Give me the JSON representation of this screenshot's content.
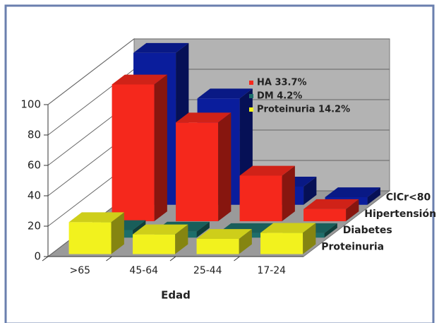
{
  "chart_data": {
    "type": "bar3d",
    "categories": [
      ">65",
      "45-64",
      "25-44",
      "17-24"
    ],
    "series": [
      {
        "name": "Proteinuria",
        "color": "#f2f21e",
        "values": [
          21,
          13,
          10,
          14
        ]
      },
      {
        "name": "Diabetes",
        "color": "#1d6e6a",
        "values": [
          5,
          4,
          3,
          3
        ]
      },
      {
        "name": "Hipertensión",
        "color": "#f5281c",
        "values": [
          90,
          65,
          30,
          8
        ]
      },
      {
        "name": "ClCr<80",
        "color": "#0a1d9c",
        "values": [
          100,
          70,
          12,
          5
        ]
      }
    ],
    "xlabel": "Edad",
    "ylim": [
      0,
      100
    ],
    "yticks": [
      0,
      20,
      40,
      60,
      80,
      100
    ],
    "grid": true,
    "notes": [
      {
        "label": "HA 33.7%",
        "color": "#f5281c"
      },
      {
        "label": "DM 4.2%",
        "color": "#1d6e6a"
      },
      {
        "label": "Proteinuria 14.2%",
        "color": "#f2f21e"
      }
    ]
  }
}
